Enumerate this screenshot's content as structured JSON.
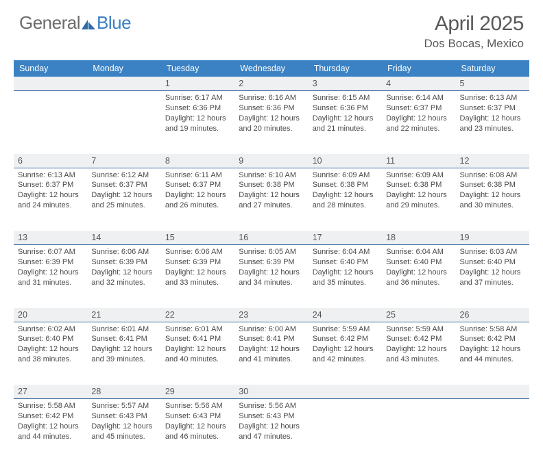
{
  "brand": {
    "part1": "General",
    "part2": "Blue"
  },
  "title": "April 2025",
  "location": "Dos Bocas, Mexico",
  "colors": {
    "header_bg": "#3b82c4",
    "header_text": "#ffffff",
    "daynum_bg": "#eef0f2",
    "row_border": "#3b6fa0",
    "body_text": "#4a4a4a",
    "title_text": "#5a5a5a",
    "logo_gray": "#6b6b6b",
    "logo_blue": "#3b7fc4"
  },
  "dayNames": [
    "Sunday",
    "Monday",
    "Tuesday",
    "Wednesday",
    "Thursday",
    "Friday",
    "Saturday"
  ],
  "weeks": [
    [
      null,
      null,
      {
        "n": "1",
        "sr": "6:17 AM",
        "ss": "6:36 PM",
        "dl": "12 hours and 19 minutes."
      },
      {
        "n": "2",
        "sr": "6:16 AM",
        "ss": "6:36 PM",
        "dl": "12 hours and 20 minutes."
      },
      {
        "n": "3",
        "sr": "6:15 AM",
        "ss": "6:36 PM",
        "dl": "12 hours and 21 minutes."
      },
      {
        "n": "4",
        "sr": "6:14 AM",
        "ss": "6:37 PM",
        "dl": "12 hours and 22 minutes."
      },
      {
        "n": "5",
        "sr": "6:13 AM",
        "ss": "6:37 PM",
        "dl": "12 hours and 23 minutes."
      }
    ],
    [
      {
        "n": "6",
        "sr": "6:13 AM",
        "ss": "6:37 PM",
        "dl": "12 hours and 24 minutes."
      },
      {
        "n": "7",
        "sr": "6:12 AM",
        "ss": "6:37 PM",
        "dl": "12 hours and 25 minutes."
      },
      {
        "n": "8",
        "sr": "6:11 AM",
        "ss": "6:37 PM",
        "dl": "12 hours and 26 minutes."
      },
      {
        "n": "9",
        "sr": "6:10 AM",
        "ss": "6:38 PM",
        "dl": "12 hours and 27 minutes."
      },
      {
        "n": "10",
        "sr": "6:09 AM",
        "ss": "6:38 PM",
        "dl": "12 hours and 28 minutes."
      },
      {
        "n": "11",
        "sr": "6:09 AM",
        "ss": "6:38 PM",
        "dl": "12 hours and 29 minutes."
      },
      {
        "n": "12",
        "sr": "6:08 AM",
        "ss": "6:38 PM",
        "dl": "12 hours and 30 minutes."
      }
    ],
    [
      {
        "n": "13",
        "sr": "6:07 AM",
        "ss": "6:39 PM",
        "dl": "12 hours and 31 minutes."
      },
      {
        "n": "14",
        "sr": "6:06 AM",
        "ss": "6:39 PM",
        "dl": "12 hours and 32 minutes."
      },
      {
        "n": "15",
        "sr": "6:06 AM",
        "ss": "6:39 PM",
        "dl": "12 hours and 33 minutes."
      },
      {
        "n": "16",
        "sr": "6:05 AM",
        "ss": "6:39 PM",
        "dl": "12 hours and 34 minutes."
      },
      {
        "n": "17",
        "sr": "6:04 AM",
        "ss": "6:40 PM",
        "dl": "12 hours and 35 minutes."
      },
      {
        "n": "18",
        "sr": "6:04 AM",
        "ss": "6:40 PM",
        "dl": "12 hours and 36 minutes."
      },
      {
        "n": "19",
        "sr": "6:03 AM",
        "ss": "6:40 PM",
        "dl": "12 hours and 37 minutes."
      }
    ],
    [
      {
        "n": "20",
        "sr": "6:02 AM",
        "ss": "6:40 PM",
        "dl": "12 hours and 38 minutes."
      },
      {
        "n": "21",
        "sr": "6:01 AM",
        "ss": "6:41 PM",
        "dl": "12 hours and 39 minutes."
      },
      {
        "n": "22",
        "sr": "6:01 AM",
        "ss": "6:41 PM",
        "dl": "12 hours and 40 minutes."
      },
      {
        "n": "23",
        "sr": "6:00 AM",
        "ss": "6:41 PM",
        "dl": "12 hours and 41 minutes."
      },
      {
        "n": "24",
        "sr": "5:59 AM",
        "ss": "6:42 PM",
        "dl": "12 hours and 42 minutes."
      },
      {
        "n": "25",
        "sr": "5:59 AM",
        "ss": "6:42 PM",
        "dl": "12 hours and 43 minutes."
      },
      {
        "n": "26",
        "sr": "5:58 AM",
        "ss": "6:42 PM",
        "dl": "12 hours and 44 minutes."
      }
    ],
    [
      {
        "n": "27",
        "sr": "5:58 AM",
        "ss": "6:42 PM",
        "dl": "12 hours and 44 minutes."
      },
      {
        "n": "28",
        "sr": "5:57 AM",
        "ss": "6:43 PM",
        "dl": "12 hours and 45 minutes."
      },
      {
        "n": "29",
        "sr": "5:56 AM",
        "ss": "6:43 PM",
        "dl": "12 hours and 46 minutes."
      },
      {
        "n": "30",
        "sr": "5:56 AM",
        "ss": "6:43 PM",
        "dl": "12 hours and 47 minutes."
      },
      null,
      null,
      null
    ]
  ],
  "labels": {
    "sunrise": "Sunrise:",
    "sunset": "Sunset:",
    "daylight": "Daylight:"
  }
}
